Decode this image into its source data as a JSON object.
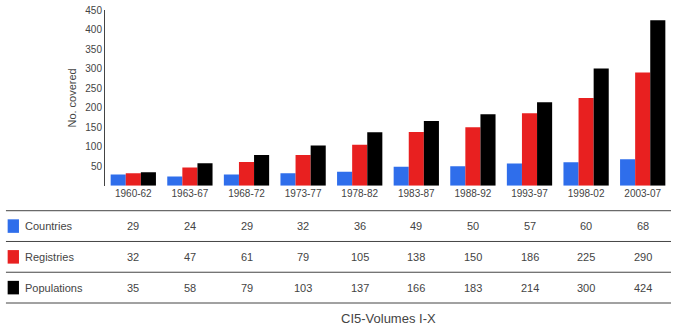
{
  "chart_data": {
    "type": "bar",
    "categories": [
      "1960-62",
      "1963-67",
      "1968-72",
      "1973-77",
      "1978-82",
      "1983-87",
      "1988-92",
      "1993-97",
      "1998-02",
      "2003-07"
    ],
    "series": [
      {
        "name": "Countries",
        "color": "#2f6eeb",
        "values": [
          29,
          24,
          29,
          32,
          36,
          49,
          50,
          57,
          60,
          68
        ]
      },
      {
        "name": "Registries",
        "color": "#e82020",
        "values": [
          32,
          47,
          61,
          79,
          105,
          138,
          150,
          186,
          225,
          290
        ]
      },
      {
        "name": "Populations",
        "color": "#000000",
        "values": [
          35,
          58,
          79,
          103,
          137,
          166,
          183,
          214,
          300,
          424
        ]
      }
    ],
    "xlabel": "CI5-Volumes I-X",
    "ylabel": "No. covered",
    "ylim": [
      0,
      450
    ],
    "yticks": [
      50,
      100,
      150,
      200,
      250,
      300,
      350,
      400,
      450
    ],
    "grid": false
  }
}
